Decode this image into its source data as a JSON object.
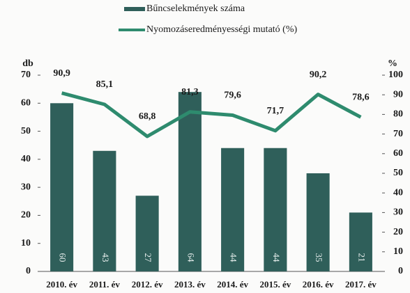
{
  "chart_data": {
    "type": "bar",
    "categories": [
      "2010. év",
      "2011. év",
      "2012. év",
      "2013. év",
      "2014. év",
      "2015. év",
      "2016. év",
      "2017. év"
    ],
    "series": [
      {
        "name": "Bűncselekmények száma",
        "type": "bar",
        "color": "#2f5f5a",
        "values": [
          60,
          43,
          27,
          64,
          44,
          44,
          35,
          21
        ]
      },
      {
        "name": "Nyomozáseredményességi mutató (%)",
        "type": "line",
        "axis": "y2",
        "color": "#2e8b6e",
        "values": [
          90.9,
          85.1,
          68.8,
          81.3,
          79.6,
          71.7,
          90.2,
          78.6
        ],
        "value_labels": [
          "90,9",
          "85,1",
          "68,8",
          "81,3",
          "79,6",
          "71,7",
          "90,2",
          "78,6"
        ]
      }
    ],
    "ylabel": "db",
    "y2label": "%",
    "ylim": [
      0,
      70
    ],
    "yticks": [
      0,
      10,
      20,
      30,
      40,
      50,
      60,
      70
    ],
    "y2lim": [
      0,
      100
    ],
    "y2ticks": [
      0,
      10,
      20,
      30,
      40,
      50,
      60,
      70,
      80,
      90,
      100
    ],
    "grid": false
  }
}
